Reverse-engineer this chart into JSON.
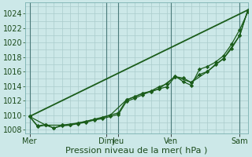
{
  "bg_color": "#cce8e8",
  "grid_color": "#aacccc",
  "line_color": "#1a5c1a",
  "marker_color": "#1a5c1a",
  "xlabel": "Pression niveau de la mer( hPa )",
  "xlabel_fontsize": 8,
  "tick_fontsize": 7,
  "ylim": [
    1007.5,
    1025.5
  ],
  "yticks": [
    1008,
    1010,
    1012,
    1014,
    1016,
    1018,
    1020,
    1022,
    1024
  ],
  "x_day_labels": [
    "Mer",
    "Dim",
    "Jeu",
    "Ven",
    "Sam"
  ],
  "x_day_positions": [
    0.0,
    9.5,
    11.0,
    17.5,
    26.0
  ],
  "vline_positions": [
    0.0,
    9.5,
    11.0,
    17.5,
    26.0
  ],
  "xlim": [
    -0.5,
    27.0
  ],
  "series1_x": [
    0,
    1,
    2,
    3,
    4,
    5,
    6,
    7,
    8,
    9,
    10,
    11,
    12,
    13,
    14,
    15,
    16,
    17,
    18,
    19,
    20,
    21,
    22,
    23,
    24,
    25,
    26,
    27
  ],
  "series1_y": [
    1009.8,
    1008.5,
    1008.7,
    1008.2,
    1008.6,
    1008.6,
    1008.9,
    1009.1,
    1009.4,
    1009.6,
    1010.0,
    1010.3,
    1012.1,
    1012.5,
    1013.0,
    1013.2,
    1013.6,
    1013.9,
    1015.3,
    1015.1,
    1014.5,
    1015.6,
    1016.0,
    1017.0,
    1017.8,
    1019.2,
    1021.0,
    1024.5
  ],
  "series2_x": [
    0,
    1,
    2,
    3,
    4,
    5,
    6,
    7,
    8,
    9,
    10,
    11,
    12,
    13,
    14,
    15,
    16,
    17,
    18,
    19,
    20,
    21,
    22,
    23,
    24,
    25,
    26,
    27
  ],
  "series2_y": [
    1009.8,
    1008.4,
    1008.6,
    1008.2,
    1008.5,
    1008.6,
    1008.8,
    1009.0,
    1009.3,
    1009.5,
    1009.8,
    1010.1,
    1011.9,
    1012.3,
    1012.8,
    1013.3,
    1013.9,
    1014.3,
    1015.4,
    1014.6,
    1014.1,
    1016.3,
    1016.7,
    1017.3,
    1018.2,
    1019.8,
    1021.8,
    1024.2
  ],
  "series3_x": [
    0,
    2,
    4,
    6,
    8,
    10,
    12,
    14,
    16,
    18,
    20,
    22,
    24,
    26,
    27
  ],
  "series3_y": [
    1009.8,
    1008.6,
    1008.6,
    1008.9,
    1009.4,
    1010.0,
    1012.1,
    1013.0,
    1013.6,
    1015.3,
    1014.5,
    1016.0,
    1017.8,
    1021.0,
    1024.5
  ],
  "series4_x": [
    0,
    27
  ],
  "series4_y": [
    1009.8,
    1024.5
  ],
  "figwidth": 3.2,
  "figheight": 2.0,
  "dpi": 100
}
